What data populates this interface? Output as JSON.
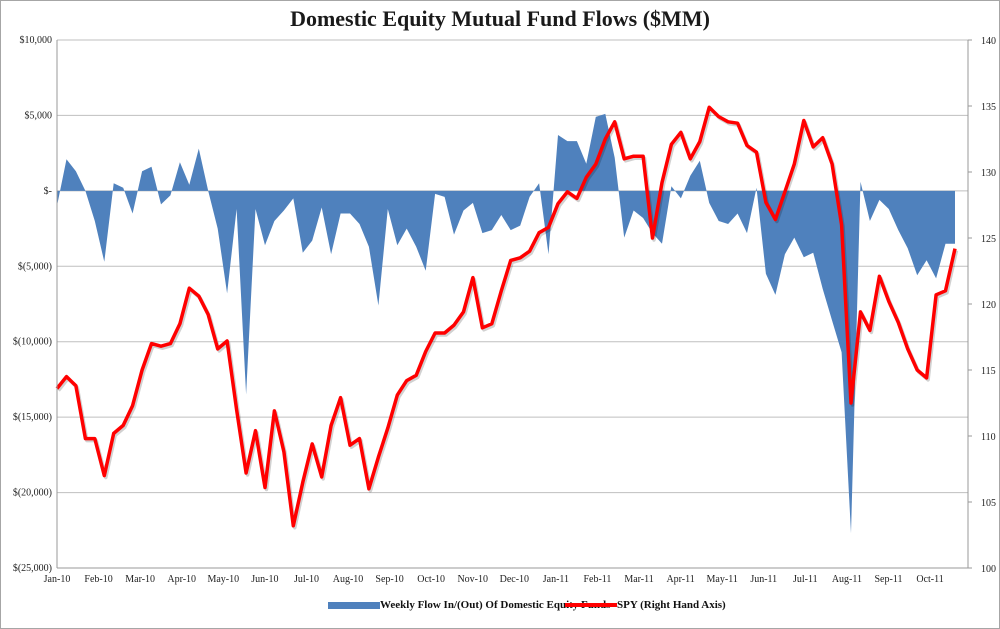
{
  "chart_data": {
    "type": "area",
    "title": "Domestic Equity Mutual Fund Flows ($MM)",
    "xlabel": "",
    "ylabel": "",
    "y_left": {
      "ylim": [
        -25000,
        10000
      ],
      "ticks": [
        10000,
        5000,
        0,
        -5000,
        -10000,
        -15000,
        -20000,
        -25000
      ],
      "tick_labels": [
        "$10,000",
        "$5,000",
        "$-",
        "$(5,000)",
        "$(10,000)",
        "$(15,000)",
        "$(20,000)",
        "$(25,000)"
      ]
    },
    "y_right": {
      "ylim": [
        100,
        140
      ],
      "ticks": [
        140,
        135,
        130,
        125,
        120,
        115,
        110,
        105,
        100
      ],
      "tick_labels": [
        "140",
        "135",
        "130",
        "125",
        "120",
        "115",
        "110",
        "105",
        "100"
      ]
    },
    "x_tick_labels": [
      "Jan-10",
      "Feb-10",
      "Mar-10",
      "Apr-10",
      "May-10",
      "Jun-10",
      "Jul-10",
      "Aug-10",
      "Sep-10",
      "Oct-10",
      "Nov-10",
      "Dec-10",
      "Jan-11",
      "Feb-11",
      "Mar-11",
      "Apr-11",
      "May-11",
      "Jun-11",
      "Jul-11",
      "Aug-11",
      "Sep-11",
      "Oct-11"
    ],
    "grid": true,
    "legend": "bottom",
    "series": [
      {
        "name": "Weekly Flow In/(Out) Of Domestic Equity Funds",
        "axis": "left",
        "type": "area",
        "color": "#4f81bd",
        "values": [
          -1000,
          2100,
          1300,
          0,
          -2000,
          -4700,
          500,
          200,
          -1500,
          1300,
          1600,
          -900,
          -300,
          1900,
          400,
          2800,
          0,
          -2500,
          -6800,
          -1200,
          -13500,
          -1200,
          -3600,
          -2000,
          -1300,
          -500,
          -4100,
          -3300,
          -1100,
          -4200,
          -1500,
          -1500,
          -2200,
          -3700,
          -7600,
          -1200,
          -3600,
          -2500,
          -3700,
          -5300,
          -200,
          -400,
          -2900,
          -1300,
          -800,
          -2800,
          -2600,
          -1600,
          -2600,
          -2300,
          -400,
          500,
          -4200,
          3700,
          3300,
          3300,
          1800,
          4900,
          5100,
          2200,
          -3100,
          -1300,
          -1800,
          -2800,
          -3500,
          300,
          -500,
          1000,
          2000,
          -800,
          -2000,
          -2200,
          -1500,
          -2800,
          200,
          -5500,
          -6900,
          -4200,
          -3100,
          -4400,
          -4100,
          -6500,
          -8600,
          -10700,
          -22700,
          600,
          -2000,
          -600,
          -1200,
          -2600,
          -3800,
          -5600,
          -4600,
          -5800,
          -3500,
          -3500
        ],
        "note": "weekly values approximate; first x at Jan-10, last at late Oct-11"
      },
      {
        "name": "SPY (Right Hand Axis)",
        "axis": "right",
        "type": "line",
        "color": "#ff0000",
        "values": [
          113.6,
          114.5,
          113.8,
          109.8,
          109.8,
          107.0,
          110.2,
          110.8,
          112.3,
          115.0,
          117.0,
          116.8,
          117.0,
          118.5,
          121.2,
          120.6,
          119.2,
          116.6,
          117.2,
          112.0,
          107.2,
          110.4,
          106.1,
          111.9,
          108.8,
          103.2,
          106.5,
          109.4,
          106.9,
          110.8,
          112.9,
          109.3,
          109.8,
          106.0,
          108.4,
          110.6,
          113.1,
          114.2,
          114.6,
          116.4,
          117.8,
          117.8,
          118.4,
          119.4,
          122.0,
          118.2,
          118.5,
          121.0,
          123.3,
          123.5,
          124.0,
          125.4,
          125.8,
          127.6,
          128.5,
          128.0,
          129.6,
          130.6,
          132.5,
          133.8,
          131.0,
          131.2,
          131.2,
          125.0,
          129.2,
          132.1,
          133.0,
          131.0,
          132.3,
          134.9,
          134.2,
          133.8,
          133.7,
          132.0,
          131.5,
          127.7,
          126.4,
          128.5,
          130.6,
          133.9,
          131.9,
          132.6,
          130.6,
          126.0,
          112.5,
          119.4,
          118.0,
          122.1,
          120.2,
          118.6,
          116.6,
          115.0,
          114.4,
          120.7,
          121.0,
          124.2
        ]
      }
    ]
  },
  "legend": {
    "flow_label": "Weekly Flow In/(Out) Of Domestic Equity Funds",
    "spy_label": "SPY (Right Hand Axis)"
  }
}
